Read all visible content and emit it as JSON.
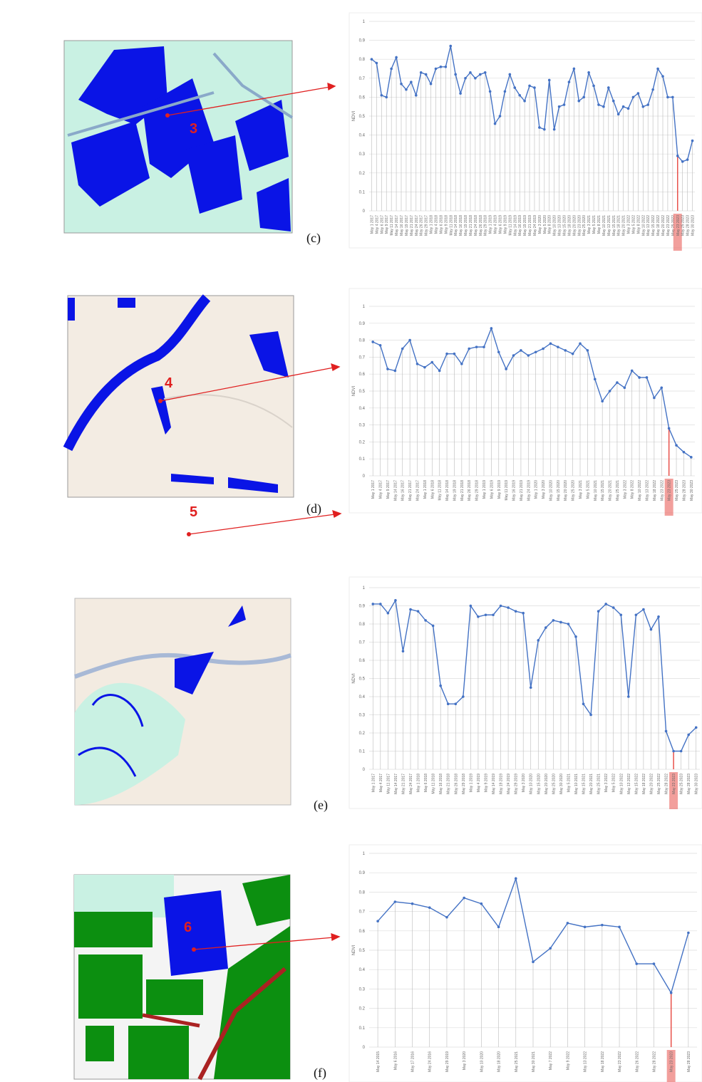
{
  "figure": {
    "panels": [
      {
        "label": "(c)",
        "marker": "3"
      },
      {
        "label": "(d)",
        "marker": "4"
      },
      {
        "label": "(e)",
        "marker": "5"
      },
      {
        "label": "(f)",
        "marker": "6"
      }
    ]
  },
  "chart_data": [
    {
      "type": "line",
      "y_label": "NDVI",
      "color": "#4472c4",
      "grid": true,
      "highlight_index": 62,
      "highlight_color": "#e8504a",
      "ylim": [
        0,
        1
      ],
      "yticks": [
        0,
        0.1,
        0.2,
        0.3,
        0.4,
        0.5,
        0.6,
        0.7,
        0.8,
        0.9,
        1
      ],
      "categories": [
        "May 1 2017",
        "May 4 2017",
        "May 6 2017",
        "May 9 2017",
        "May 11 2017",
        "May 14 2017",
        "May 16 2017",
        "May 19 2017",
        "May 21 2017",
        "May 24 2017",
        "May 26 2017",
        "May 29 2017",
        "May 1 2018",
        "May 4 2018",
        "May 6 2018",
        "May 9 2018",
        "May 11 2018",
        "May 14 2018",
        "May 16 2018",
        "May 19 2018",
        "May 21 2018",
        "May 24 2018",
        "May 26 2018",
        "May 29 2018",
        "May 1 2019",
        "May 4 2019",
        "May 6 2019",
        "May 9 2019",
        "May 11 2019",
        "May 14 2019",
        "May 16 2019",
        "May 19 2019",
        "May 21 2019",
        "May 24 2019",
        "May 3 2020",
        "May 5 2020",
        "May 8 2020",
        "May 10 2020",
        "May 13 2020",
        "May 15 2020",
        "May 18 2020",
        "May 20 2020",
        "May 23 2020",
        "May 25 2020",
        "May 3 2021",
        "May 5 2021",
        "May 8 2021",
        "May 10 2021",
        "May 13 2021",
        "May 15 2021",
        "May 18 2021",
        "May 20 2021",
        "May 3 2022",
        "May 5 2022",
        "May 8 2022",
        "May 10 2022",
        "May 13 2022",
        "May 15 2022",
        "May 18 2022",
        "May 20 2022",
        "May 23 2022",
        "May 25 2022",
        "May 23 2023",
        "May 25 2023",
        "May 28 2023",
        "May 30 2023"
      ],
      "values": [
        0.8,
        0.78,
        0.61,
        0.6,
        0.75,
        0.81,
        0.67,
        0.64,
        0.68,
        0.61,
        0.73,
        0.72,
        0.67,
        0.75,
        0.76,
        0.76,
        0.87,
        0.72,
        0.62,
        0.7,
        0.73,
        0.7,
        0.72,
        0.73,
        0.63,
        0.46,
        0.5,
        0.63,
        0.72,
        0.65,
        0.61,
        0.58,
        0.66,
        0.65,
        0.44,
        0.43,
        0.69,
        0.43,
        0.55,
        0.56,
        0.68,
        0.75,
        0.58,
        0.6,
        0.73,
        0.66,
        0.56,
        0.55,
        0.65,
        0.58,
        0.51,
        0.55,
        0.54,
        0.6,
        0.62,
        0.55,
        0.56,
        0.64,
        0.75,
        0.71,
        0.6,
        0.6,
        0.29,
        0.26,
        0.27,
        0.37
      ]
    },
    {
      "type": "line",
      "y_label": "NDVI",
      "color": "#4472c4",
      "grid": true,
      "highlight_index": 40,
      "highlight_color": "#e8504a",
      "ylim": [
        0,
        1
      ],
      "yticks": [
        0,
        0.1,
        0.2,
        0.3,
        0.4,
        0.5,
        0.6,
        0.7,
        0.8,
        0.9,
        1
      ],
      "categories": [
        "May 1 2017",
        "May 4 2017",
        "May 9 2017",
        "May 14 2017",
        "May 16 2017",
        "May 21 2017",
        "May 24 2017",
        "May 1 2018",
        "May 6 2018",
        "May 11 2018",
        "May 14 2018",
        "May 19 2018",
        "May 21 2018",
        "May 26 2018",
        "May 29 2018",
        "May 1 2019",
        "May 6 2019",
        "May 9 2019",
        "May 11 2019",
        "May 16 2019",
        "May 21 2019",
        "May 24 2019",
        "May 1 2020",
        "May 3 2020",
        "May 10 2020",
        "May 15 2020",
        "May 20 2020",
        "May 25 2020",
        "May 3 2021",
        "May 5 2021",
        "May 10 2021",
        "May 15 2021",
        "May 20 2021",
        "May 25 2021",
        "May 3 2022",
        "May 8 2022",
        "May 10 2022",
        "May 13 2022",
        "May 18 2022",
        "May 23 2022",
        "May 23 2023",
        "May 25 2023",
        "May 28 2023",
        "May 30 2023"
      ],
      "values": [
        0.79,
        0.77,
        0.63,
        0.62,
        0.75,
        0.8,
        0.66,
        0.64,
        0.67,
        0.62,
        0.72,
        0.72,
        0.66,
        0.75,
        0.76,
        0.76,
        0.87,
        0.73,
        0.63,
        0.71,
        0.74,
        0.71,
        0.73,
        0.75,
        0.78,
        0.76,
        0.74,
        0.72,
        0.78,
        0.74,
        0.57,
        0.44,
        0.5,
        0.55,
        0.52,
        0.62,
        0.58,
        0.58,
        0.46,
        0.52,
        0.28,
        0.18,
        0.14,
        0.11
      ]
    },
    {
      "type": "line",
      "y_label": "NDVI",
      "color": "#4472c4",
      "grid": true,
      "highlight_index": 40,
      "highlight_color": "#e8504a",
      "ylim": [
        0,
        1
      ],
      "yticks": [
        0,
        0.1,
        0.2,
        0.3,
        0.4,
        0.5,
        0.6,
        0.7,
        0.8,
        0.9,
        1
      ],
      "categories": [
        "May 1 2017",
        "May 4 2017",
        "May 11 2017",
        "May 14 2017",
        "May 21 2017",
        "May 24 2017",
        "May 1 2018",
        "May 6 2018",
        "May 11 2018",
        "May 16 2018",
        "May 21 2018",
        "May 26 2018",
        "May 29 2018",
        "May 1 2019",
        "May 4 2019",
        "May 9 2019",
        "May 14 2019",
        "May 19 2019",
        "May 24 2019",
        "May 29 2019",
        "May 3 2020",
        "May 10 2020",
        "May 15 2020",
        "May 20 2020",
        "May 25 2020",
        "May 30 2020",
        "May 5 2021",
        "May 10 2021",
        "May 15 2021",
        "May 20 2021",
        "May 25 2021",
        "May 3 2022",
        "May 5 2022",
        "May 10 2022",
        "May 13 2022",
        "May 15 2022",
        "May 18 2022",
        "May 20 2022",
        "May 25 2022",
        "May 28 2022",
        "May 23 2023",
        "May 25 2023",
        "May 28 2023",
        "May 30 2023"
      ],
      "values": [
        0.91,
        0.91,
        0.86,
        0.93,
        0.65,
        0.88,
        0.87,
        0.82,
        0.79,
        0.46,
        0.36,
        0.36,
        0.4,
        0.9,
        0.84,
        0.85,
        0.85,
        0.9,
        0.89,
        0.87,
        0.86,
        0.45,
        0.71,
        0.78,
        0.82,
        0.81,
        0.8,
        0.73,
        0.36,
        0.3,
        0.87,
        0.91,
        0.89,
        0.85,
        0.4,
        0.85,
        0.88,
        0.77,
        0.84,
        0.21,
        0.1,
        0.1,
        0.19,
        0.23
      ]
    },
    {
      "type": "line",
      "y_label": "NDVI",
      "color": "#4472c4",
      "grid": true,
      "highlight_index": 17,
      "highlight_color": "#e8504a",
      "ylim": [
        0,
        1
      ],
      "yticks": [
        0,
        0.1,
        0.2,
        0.3,
        0.4,
        0.5,
        0.6,
        0.7,
        0.8,
        0.9,
        1
      ],
      "categories": [
        "May 14 2015",
        "May 6 2016",
        "May 17 2016",
        "May 24 2016",
        "May 29 2019",
        "May 3 2020",
        "May 10 2020",
        "May 18 2020",
        "May 25 2021",
        "May 30 2021",
        "May 7 2022",
        "May 9 2022",
        "May 13 2022",
        "May 18 2022",
        "May 23 2022",
        "May 26 2022",
        "May 28 2022",
        "May 23 2023",
        "May 28 2023"
      ],
      "values": [
        0.65,
        0.75,
        0.74,
        0.72,
        0.67,
        0.77,
        0.74,
        0.62,
        0.87,
        0.44,
        0.51,
        0.64,
        0.62,
        0.63,
        0.62,
        0.43,
        0.43,
        0.28,
        0.59
      ]
    }
  ]
}
